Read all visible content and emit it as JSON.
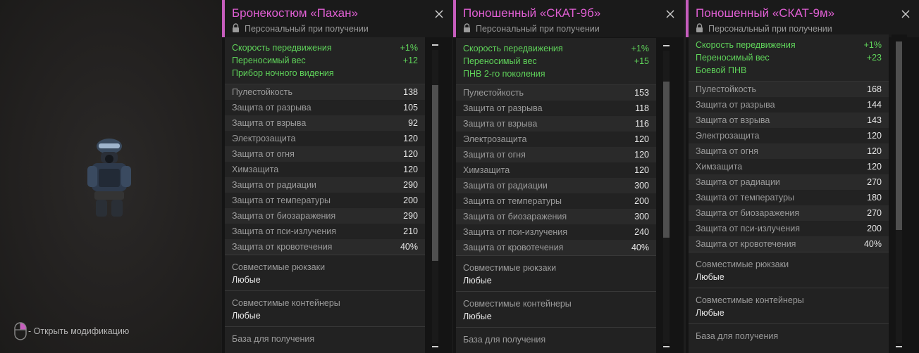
{
  "colors": {
    "title": "#e05fd3",
    "accent_bar": "#c65dbd",
    "bonus_green": "#5fd35a",
    "panel_bg": "#222222",
    "header_bg": "#1a1a1a"
  },
  "left_panel": {
    "image_icon": "armor-suit-preview",
    "hint_icon": "mouse-right-click-icon",
    "hint_text": "- Открыть модификацию"
  },
  "cards": [
    {
      "title": "Бронекостюм «Пахан»",
      "personal": "Персональный при получении",
      "bonuses": [
        {
          "name": "Скорость передвижения",
          "value": "+1%"
        },
        {
          "name": "Переносимый вес",
          "value": "+12"
        },
        {
          "name": "Прибор ночного видения",
          "value": ""
        }
      ],
      "stats": [
        {
          "name": "Пулестойкость",
          "value": "138"
        },
        {
          "name": "Защита от разрыва",
          "value": "105"
        },
        {
          "name": "Защита от взрыва",
          "value": "92"
        },
        {
          "name": "Электрозащита",
          "value": "120"
        },
        {
          "name": "Защита от огня",
          "value": "120"
        },
        {
          "name": "Химзащита",
          "value": "120"
        },
        {
          "name": "Защита от радиации",
          "value": "290"
        },
        {
          "name": "Защита от температуры",
          "value": "200"
        },
        {
          "name": "Защита от биозаражения",
          "value": "290"
        },
        {
          "name": "Защита от пси-излучения",
          "value": "210"
        },
        {
          "name": "Защита от кровотечения",
          "value": "40%"
        }
      ],
      "sections": [
        {
          "label": "Совместимые рюкзаки",
          "value": "Любые"
        },
        {
          "label": "Совместимые контейнеры",
          "value": "Любые"
        },
        {
          "label": "База для получения",
          "value": ""
        }
      ]
    },
    {
      "title": "Поношенный «СКАТ-9б»",
      "personal": "Персональный при получении",
      "bonuses": [
        {
          "name": "Скорость передвижения",
          "value": "+1%"
        },
        {
          "name": "Переносимый вес",
          "value": "+15"
        },
        {
          "name": "ПНВ 2-го поколения",
          "value": ""
        }
      ],
      "stats": [
        {
          "name": "Пулестойкость",
          "value": "153"
        },
        {
          "name": "Защита от разрыва",
          "value": "118"
        },
        {
          "name": "Защита от взрыва",
          "value": "116"
        },
        {
          "name": "Электрозащита",
          "value": "120"
        },
        {
          "name": "Защита от огня",
          "value": "120"
        },
        {
          "name": "Химзащита",
          "value": "120"
        },
        {
          "name": "Защита от радиации",
          "value": "300"
        },
        {
          "name": "Защита от температуры",
          "value": "200"
        },
        {
          "name": "Защита от биозаражения",
          "value": "300"
        },
        {
          "name": "Защита от пси-излучения",
          "value": "240"
        },
        {
          "name": "Защита от кровотечения",
          "value": "40%"
        }
      ],
      "sections": [
        {
          "label": "Совместимые рюкзаки",
          "value": "Любые"
        },
        {
          "label": "Совместимые контейнеры",
          "value": "Любые"
        },
        {
          "label": "База для получения",
          "value": ""
        }
      ]
    },
    {
      "title": "Поношенный «СКАТ-9м»",
      "personal": "Персональный при получении",
      "bonuses": [
        {
          "name": "Скорость передвижения",
          "value": "+1%"
        },
        {
          "name": "Переносимый вес",
          "value": "+23"
        },
        {
          "name": "Боевой ПНВ",
          "value": ""
        }
      ],
      "stats": [
        {
          "name": "Пулестойкость",
          "value": "168"
        },
        {
          "name": "Защита от разрыва",
          "value": "144"
        },
        {
          "name": "Защита от взрыва",
          "value": "143"
        },
        {
          "name": "Электрозащита",
          "value": "120"
        },
        {
          "name": "Защита от огня",
          "value": "120"
        },
        {
          "name": "Химзащита",
          "value": "120"
        },
        {
          "name": "Защита от радиации",
          "value": "270"
        },
        {
          "name": "Защита от температуры",
          "value": "180"
        },
        {
          "name": "Защита от биозаражения",
          "value": "270"
        },
        {
          "name": "Защита от пси-излучения",
          "value": "200"
        },
        {
          "name": "Защита от кровотечения",
          "value": "40%"
        }
      ],
      "sections": [
        {
          "label": "Совместимые рюкзаки",
          "value": "Любые"
        },
        {
          "label": "Совместимые контейнеры",
          "value": "Любые"
        },
        {
          "label": "База для получения",
          "value": ""
        }
      ]
    }
  ]
}
